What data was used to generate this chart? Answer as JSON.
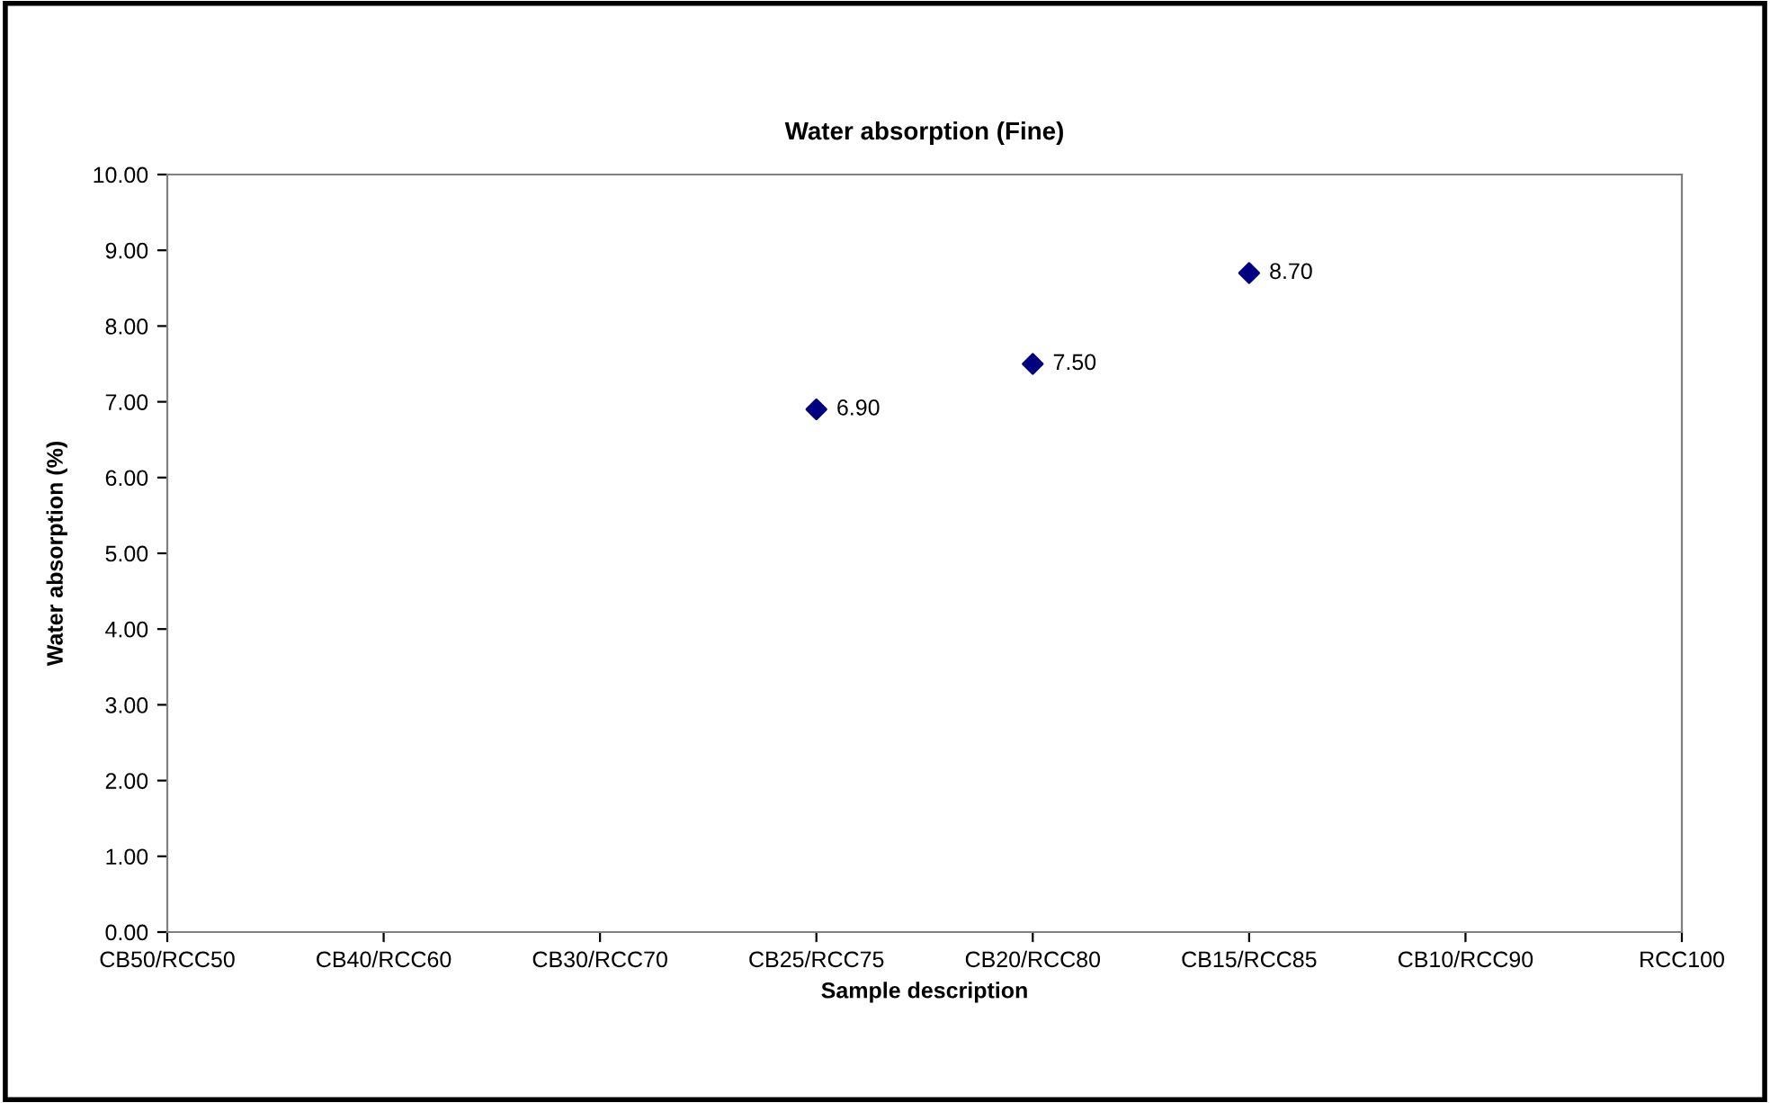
{
  "chart_data": {
    "type": "scatter",
    "title": "Water absorption (Fine)",
    "xlabel": "Sample description",
    "ylabel": "Water absorption (%)",
    "categories": [
      "CB50/RCC50",
      "CB40/RCC60",
      "CB30/RCC70",
      "CB25/RCC75",
      "CB20/RCC80",
      "CB15/RCC85",
      "CB10/RCC90",
      "RCC100"
    ],
    "series": [
      {
        "color": "#000080",
        "values": [
          null,
          null,
          null,
          6.9,
          7.5,
          8.7,
          null,
          null
        ],
        "value_labels": [
          null,
          null,
          null,
          "6.90",
          "7.50",
          "8.70",
          null,
          null
        ]
      }
    ],
    "ylim": [
      0,
      10
    ],
    "yticks": [
      {
        "value": 0,
        "label": "0.00"
      },
      {
        "value": 1,
        "label": "1.00"
      },
      {
        "value": 2,
        "label": "2.00"
      },
      {
        "value": 3,
        "label": "3.00"
      },
      {
        "value": 4,
        "label": "4.00"
      },
      {
        "value": 5,
        "label": "5.00"
      },
      {
        "value": 6,
        "label": "6.00"
      },
      {
        "value": 7,
        "label": "7.00"
      },
      {
        "value": 8,
        "label": "8.00"
      },
      {
        "value": 9,
        "label": "9.00"
      },
      {
        "value": 10,
        "label": "10.00"
      }
    ],
    "marker": "diamond",
    "grid": false,
    "legend": false
  }
}
